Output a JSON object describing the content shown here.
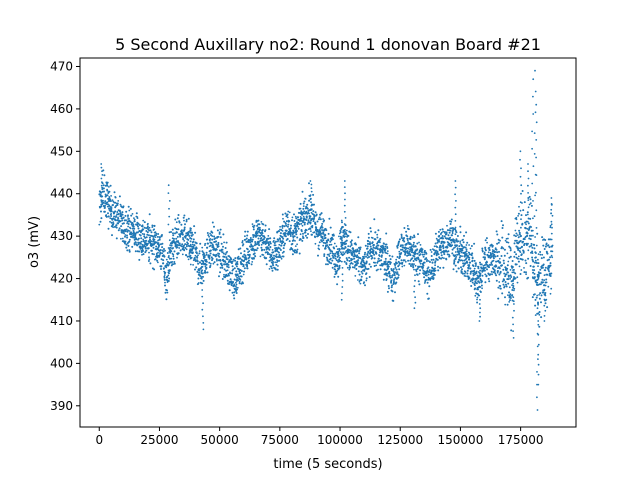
{
  "chart_data": {
    "type": "scatter",
    "title": "5 Second Auxillary no2: Round 1 donovan Board #21",
    "xlabel": "time (5 seconds)",
    "ylabel": "o3 (mV)",
    "xlim": [
      -8000,
      198000
    ],
    "ylim": [
      385,
      472
    ],
    "xticks": [
      0,
      25000,
      50000,
      75000,
      100000,
      125000,
      150000,
      175000
    ],
    "yticks": [
      390,
      400,
      410,
      420,
      430,
      440,
      450,
      460,
      470
    ],
    "grid": false,
    "legend": "none",
    "point_color": "#1f77b4",
    "baseline": [
      [
        0,
        437
      ],
      [
        2000,
        440
      ],
      [
        5000,
        436
      ],
      [
        8000,
        434
      ],
      [
        12000,
        432
      ],
      [
        16000,
        430
      ],
      [
        20000,
        429
      ],
      [
        24000,
        428
      ],
      [
        26000,
        426
      ],
      [
        28000,
        420
      ],
      [
        30000,
        427
      ],
      [
        33000,
        430
      ],
      [
        36000,
        429
      ],
      [
        39000,
        427
      ],
      [
        42000,
        422
      ],
      [
        44000,
        425
      ],
      [
        47000,
        428
      ],
      [
        50000,
        426
      ],
      [
        53000,
        423
      ],
      [
        56000,
        420
      ],
      [
        58000,
        422
      ],
      [
        60000,
        425
      ],
      [
        63000,
        428
      ],
      [
        66000,
        430
      ],
      [
        69000,
        429
      ],
      [
        72000,
        425
      ],
      [
        75000,
        428
      ],
      [
        78000,
        432
      ],
      [
        81000,
        430
      ],
      [
        84000,
        433
      ],
      [
        87000,
        436
      ],
      [
        90000,
        432
      ],
      [
        93000,
        430
      ],
      [
        96000,
        428
      ],
      [
        99000,
        424
      ],
      [
        101000,
        430
      ],
      [
        103000,
        427
      ],
      [
        106000,
        425
      ],
      [
        110000,
        422
      ],
      [
        113000,
        428
      ],
      [
        116000,
        426
      ],
      [
        119000,
        424
      ],
      [
        122000,
        420
      ],
      [
        125000,
        426
      ],
      [
        128000,
        428
      ],
      [
        131000,
        426
      ],
      [
        134000,
        424
      ],
      [
        137000,
        420
      ],
      [
        140000,
        426
      ],
      [
        143000,
        428
      ],
      [
        146000,
        430
      ],
      [
        149000,
        426
      ],
      [
        152000,
        425
      ],
      [
        155000,
        423
      ],
      [
        157000,
        418
      ],
      [
        160000,
        424
      ],
      [
        163000,
        425
      ],
      [
        166000,
        424
      ],
      [
        169000,
        422
      ],
      [
        171000,
        418
      ],
      [
        173000,
        426
      ],
      [
        175000,
        430
      ],
      [
        177000,
        428
      ],
      [
        179000,
        432
      ],
      [
        181000,
        420
      ],
      [
        183000,
        418
      ],
      [
        185000,
        422
      ],
      [
        188000,
        425
      ]
    ],
    "spikes": [
      {
        "x": 1000,
        "y": 447
      },
      {
        "x": 29000,
        "y": 442
      },
      {
        "x": 43000,
        "y": 408
      },
      {
        "x": 57000,
        "y": 417
      },
      {
        "x": 88000,
        "y": 443
      },
      {
        "x": 102000,
        "y": 443
      },
      {
        "x": 101000,
        "y": 415
      },
      {
        "x": 131000,
        "y": 413
      },
      {
        "x": 148000,
        "y": 443
      },
      {
        "x": 158000,
        "y": 410
      },
      {
        "x": 172000,
        "y": 406
      },
      {
        "x": 175000,
        "y": 450
      },
      {
        "x": 178000,
        "y": 447
      },
      {
        "x": 180000,
        "y": 467
      },
      {
        "x": 181000,
        "y": 469
      },
      {
        "x": 181500,
        "y": 461
      },
      {
        "x": 182000,
        "y": 389
      },
      {
        "x": 182500,
        "y": 395
      },
      {
        "x": 185000,
        "y": 410
      },
      {
        "x": 188000,
        "y": 439
      }
    ]
  }
}
